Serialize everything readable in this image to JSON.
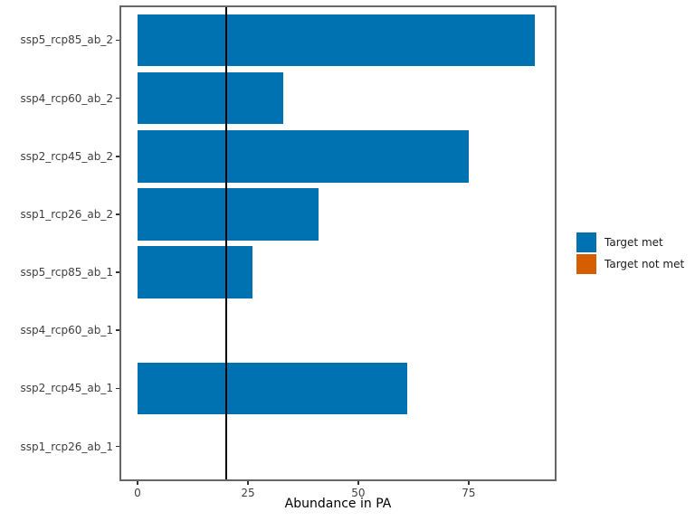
{
  "chart_data": {
    "type": "bar",
    "orientation": "horizontal",
    "title": "",
    "xlabel": "Abundance in PA",
    "ylabel": "",
    "categories": [
      "ssp5_rcp85_ab_2",
      "ssp4_rcp60_ab_2",
      "ssp2_rcp45_ab_2",
      "ssp1_rcp26_ab_2",
      "ssp5_rcp85_ab_1",
      "ssp4_rcp60_ab_1",
      "ssp2_rcp45_ab_1",
      "ssp1_rcp26_ab_1"
    ],
    "values": [
      90,
      33,
      75,
      41,
      26,
      0,
      61,
      0
    ],
    "x_ticks": [
      0,
      25,
      50,
      75
    ],
    "xlim": [
      -4.1,
      94.9
    ],
    "reference_line_x": 20,
    "grid": "off",
    "legend": {
      "position": "right",
      "entries": [
        {
          "label": "Target met",
          "color": "#0072B2"
        },
        {
          "label": "Target not met",
          "color": "#D55E00"
        }
      ]
    },
    "colors": {
      "bar_fill": "#0072B2",
      "reference_line": "#000000",
      "panel_border": "#666666",
      "axis_text": "#404040"
    }
  }
}
